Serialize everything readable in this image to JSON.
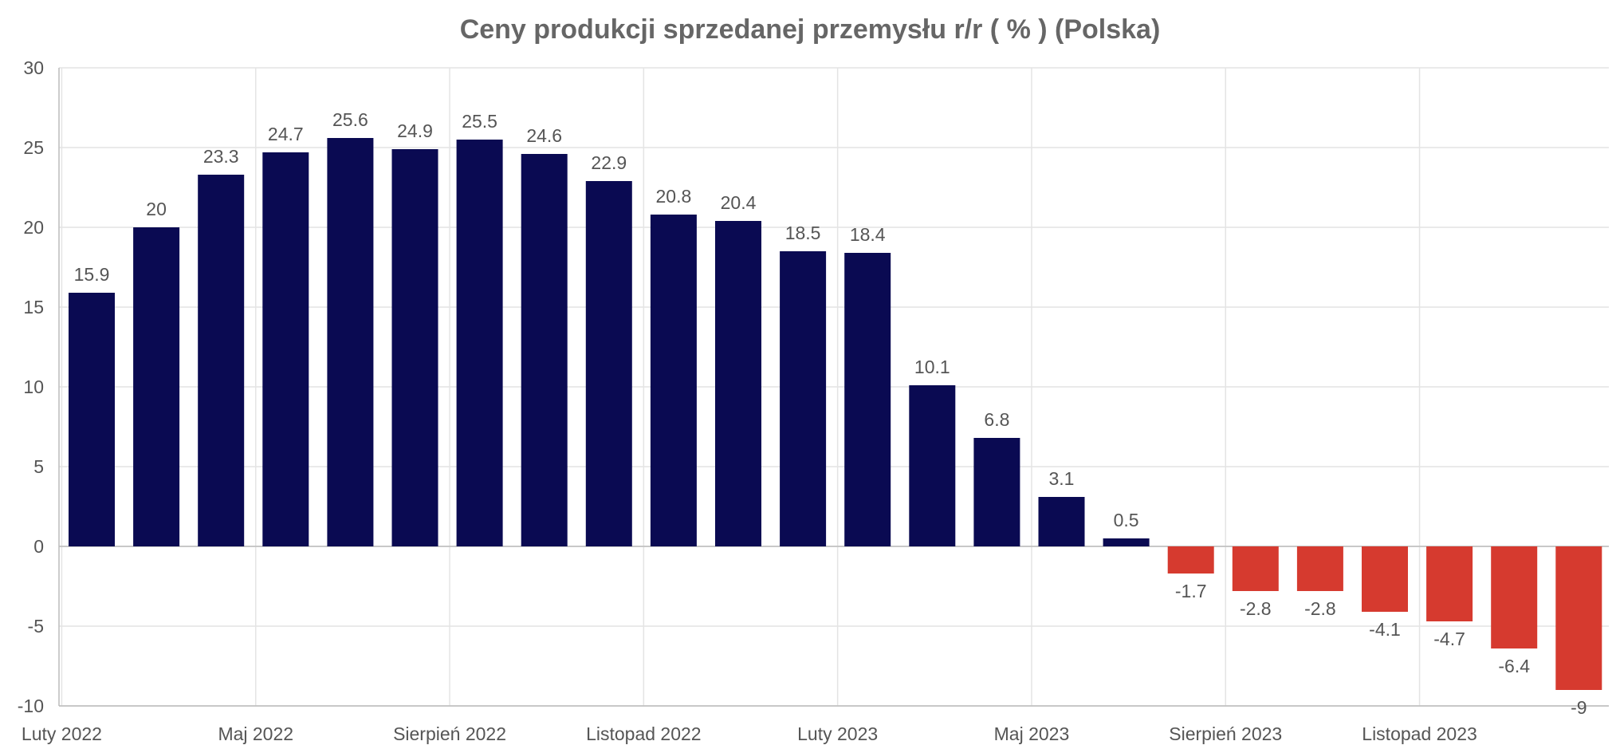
{
  "chart_data": {
    "type": "bar",
    "title": "Ceny produkcji sprzedanej przemysłu r/r ( % ) (Polska)",
    "xlabel": "",
    "ylabel": "",
    "ylim": [
      -10,
      30
    ],
    "yticks": [
      "30",
      "25",
      "20",
      "15",
      "10",
      "5",
      "0",
      "-5",
      "-10"
    ],
    "xtick_labels": [
      {
        "label": "Luty 2022",
        "at": 0
      },
      {
        "label": "Maj 2022",
        "at": 3
      },
      {
        "label": "Sierpień 2022",
        "at": 6
      },
      {
        "label": "Listopad 2022",
        "at": 9
      },
      {
        "label": "Luty 2023",
        "at": 12
      },
      {
        "label": "Maj 2023",
        "at": 15
      },
      {
        "label": "Sierpień 2023",
        "at": 18
      },
      {
        "label": "Listopad 2023",
        "at": 21
      }
    ],
    "values": [
      15.9,
      20,
      23.3,
      24.7,
      25.6,
      24.9,
      25.5,
      24.6,
      22.9,
      20.8,
      20.4,
      18.5,
      18.4,
      10.1,
      6.8,
      3.1,
      0.5,
      -1.7,
      -2.8,
      -2.8,
      -4.1,
      -4.7,
      -6.4,
      -9
    ],
    "labels": [
      "15.9",
      "20",
      "23.3",
      "24.7",
      "25.6",
      "24.9",
      "25.5",
      "24.6",
      "22.9",
      "20.8",
      "20.4",
      "18.5",
      "18.4",
      "10.1",
      "6.8",
      "3.1",
      "0.5",
      "-1.7",
      "-2.8",
      "-2.8",
      "-4.1",
      "-4.7",
      "-6.4",
      "-9"
    ],
    "colors": {
      "positive": "#0a0a52",
      "negative": "#d63a2f",
      "grid": "#e4e4e4",
      "axis": "#bbbbbb"
    },
    "grid": true,
    "legend": "none"
  }
}
